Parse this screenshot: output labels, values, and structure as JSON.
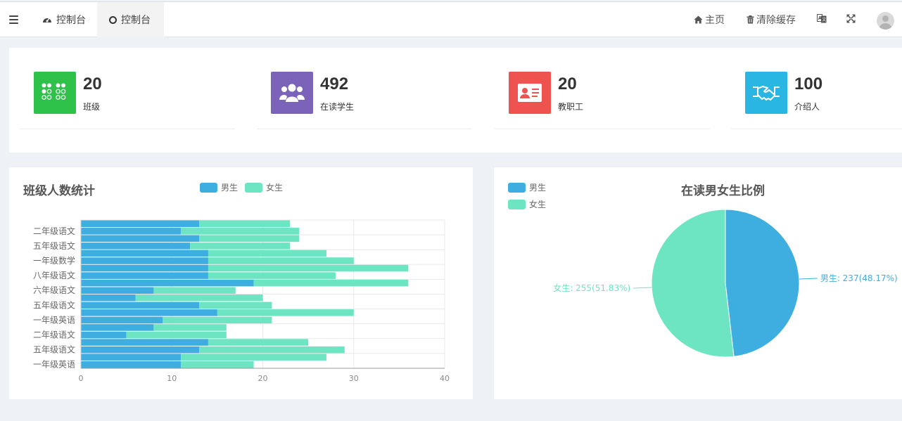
{
  "tabs": [
    {
      "label": "控制台",
      "icon": "dashboard-icon"
    },
    {
      "label": "控制台",
      "icon": "circle-icon"
    }
  ],
  "topnav": {
    "home": "主页",
    "clear_cache": "清除缓存"
  },
  "stats": [
    {
      "value": "20",
      "label": "班级",
      "color": "#2ec24a",
      "icon": "grid-icon"
    },
    {
      "value": "492",
      "label": "在读学生",
      "color": "#7a63b8",
      "icon": "users-icon"
    },
    {
      "value": "20",
      "label": "教职工",
      "color": "#ef5350",
      "icon": "id-card-icon"
    },
    {
      "value": "100",
      "label": "介绍人",
      "color": "#29b6e3",
      "icon": "handshake-icon"
    }
  ],
  "bar_card": {
    "title": "班级人数统计"
  },
  "pie_card": {
    "title": "在读男女生比例"
  },
  "colors": {
    "male": "#3eaee0",
    "female": "#6ee5c2"
  },
  "chart_data": [
    {
      "type": "bar",
      "orientation": "horizontal",
      "stacked": true,
      "title": "班级人数统计",
      "legend": [
        "男生",
        "女生"
      ],
      "legend_position": "top",
      "categories": [
        "一年级英语",
        "",
        "五年级语文",
        "",
        "二年级语文",
        "",
        "一年级英语",
        "",
        "五年级语文",
        "",
        "六年级语文",
        "",
        "八年级语文",
        "",
        "一年级数学",
        "",
        "五年级语文",
        "",
        "二年级语文",
        ""
      ],
      "series": [
        {
          "name": "男生",
          "values": [
            11,
            11,
            13,
            14,
            5,
            8,
            9,
            15,
            13,
            6,
            8,
            19,
            14,
            14,
            14,
            14,
            12,
            13,
            11,
            13
          ]
        },
        {
          "name": "女生",
          "values": [
            8,
            16,
            16,
            11,
            11,
            8,
            12,
            15,
            8,
            14,
            9,
            17,
            14,
            22,
            16,
            13,
            11,
            11,
            13,
            10
          ]
        }
      ],
      "xlim": [
        0,
        40
      ],
      "xticks": [
        0,
        10,
        20,
        30,
        40
      ],
      "grid": true
    },
    {
      "type": "pie",
      "title": "在读男女生比例",
      "legend_position": "top-left",
      "slices": [
        {
          "name": "男生",
          "value": 237,
          "percent": 48.17,
          "label": "男生: 237(48.17%)"
        },
        {
          "name": "女生",
          "value": 255,
          "percent": 51.83,
          "label": "女生: 255(51.83%)"
        }
      ]
    }
  ]
}
